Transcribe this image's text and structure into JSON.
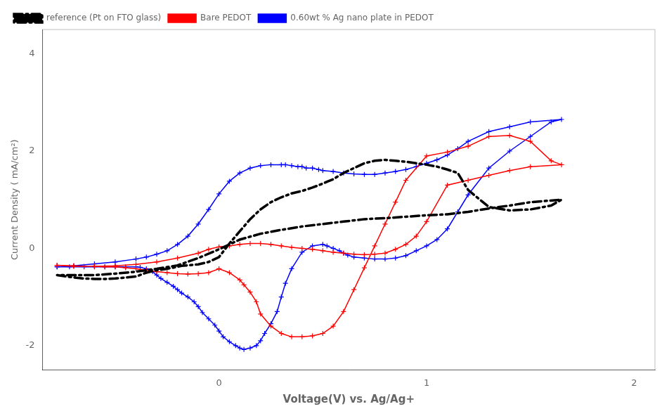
{
  "chart_data": {
    "type": "line",
    "xlabel": "Voltage(V) vs. Ag/Ag+",
    "ylabel": "Current Density ( mA/cm²)",
    "xlim": [
      -0.85,
      2.1
    ],
    "ylim": [
      -2.5,
      4.5
    ],
    "xticks": [
      0,
      1,
      2
    ],
    "yticks": [
      -2,
      0,
      2,
      4
    ],
    "grid": false,
    "legend": "upper left",
    "series": [
      {
        "name": "reference (Pt on FTO glass)",
        "color": "#000000",
        "line_style": "dashdot",
        "x": [
          -0.78,
          -0.7,
          -0.65,
          -0.6,
          -0.55,
          -0.5,
          -0.45,
          -0.4,
          -0.35,
          -0.3,
          -0.25,
          -0.2,
          -0.18,
          -0.15,
          -0.1,
          -0.05,
          0.0,
          0.05,
          0.1,
          0.15,
          0.2,
          0.25,
          0.3,
          0.35,
          0.4,
          0.45,
          0.5,
          0.52,
          0.55,
          0.58,
          0.6,
          0.65,
          0.7,
          0.75,
          0.8,
          0.85,
          0.9,
          0.95,
          1.0,
          1.05,
          1.1,
          1.15,
          1.2,
          1.3,
          1.4,
          1.5,
          1.6,
          1.65,
          1.5,
          1.4,
          1.3,
          1.2,
          1.1,
          1.0,
          0.9,
          0.8,
          0.7,
          0.6,
          0.5,
          0.4,
          0.3,
          0.2,
          0.1,
          0.0,
          -0.1,
          -0.2,
          -0.3,
          -0.4,
          -0.5,
          -0.6,
          -0.7,
          -0.78
        ],
        "values": [
          -0.55,
          -0.6,
          -0.62,
          -0.63,
          -0.63,
          -0.62,
          -0.6,
          -0.58,
          -0.5,
          -0.45,
          -0.42,
          -0.38,
          -0.36,
          -0.35,
          -0.33,
          -0.28,
          -0.18,
          0.1,
          0.35,
          0.6,
          0.8,
          0.95,
          1.05,
          1.13,
          1.18,
          1.25,
          1.33,
          1.37,
          1.42,
          1.5,
          1.55,
          1.65,
          1.75,
          1.8,
          1.82,
          1.8,
          1.78,
          1.75,
          1.72,
          1.68,
          1.62,
          1.55,
          1.2,
          0.85,
          0.78,
          0.8,
          0.88,
          1.0,
          0.95,
          0.88,
          0.82,
          0.75,
          0.7,
          0.68,
          0.65,
          0.62,
          0.6,
          0.55,
          0.5,
          0.45,
          0.38,
          0.3,
          0.18,
          -0.02,
          -0.2,
          -0.35,
          -0.42,
          -0.48,
          -0.52,
          -0.55,
          -0.55,
          -0.55
        ]
      },
      {
        "name": "Bare PEDOT",
        "color": "#ff0000",
        "line_style": "solid",
        "marker": "+",
        "x": [
          -0.78,
          -0.7,
          -0.65,
          -0.6,
          -0.55,
          -0.5,
          -0.45,
          -0.4,
          -0.35,
          -0.3,
          -0.25,
          -0.2,
          -0.15,
          -0.1,
          -0.05,
          0.0,
          0.05,
          0.1,
          0.12,
          0.15,
          0.18,
          0.2,
          0.25,
          0.3,
          0.35,
          0.4,
          0.45,
          0.5,
          0.55,
          0.6,
          0.65,
          0.7,
          0.75,
          0.8,
          0.85,
          0.9,
          1.0,
          1.1,
          1.2,
          1.3,
          1.4,
          1.5,
          1.6,
          1.65,
          1.5,
          1.4,
          1.3,
          1.2,
          1.1,
          1.0,
          0.95,
          0.9,
          0.85,
          0.8,
          0.75,
          0.7,
          0.65,
          0.6,
          0.55,
          0.5,
          0.45,
          0.4,
          0.35,
          0.3,
          0.25,
          0.2,
          0.15,
          0.1,
          0.05,
          0.0,
          -0.05,
          -0.1,
          -0.2,
          -0.3,
          -0.4,
          -0.5,
          -0.6,
          -0.7,
          -0.78
        ],
        "values": [
          -0.35,
          -0.36,
          -0.37,
          -0.37,
          -0.38,
          -0.38,
          -0.4,
          -0.42,
          -0.45,
          -0.48,
          -0.5,
          -0.52,
          -0.53,
          -0.52,
          -0.5,
          -0.42,
          -0.5,
          -0.65,
          -0.75,
          -0.9,
          -1.1,
          -1.35,
          -1.6,
          -1.75,
          -1.82,
          -1.82,
          -1.8,
          -1.75,
          -1.6,
          -1.3,
          -0.85,
          -0.4,
          0.05,
          0.5,
          0.95,
          1.4,
          1.9,
          1.98,
          2.1,
          2.3,
          2.32,
          2.2,
          1.8,
          1.72,
          1.68,
          1.6,
          1.5,
          1.4,
          1.3,
          0.55,
          0.25,
          0.08,
          -0.02,
          -0.1,
          -0.12,
          -0.13,
          -0.12,
          -0.1,
          -0.08,
          -0.05,
          -0.02,
          0.0,
          0.02,
          0.05,
          0.08,
          0.1,
          0.1,
          0.08,
          0.05,
          0.03,
          -0.02,
          -0.1,
          -0.2,
          -0.28,
          -0.33,
          -0.36,
          -0.37,
          -0.37,
          -0.35
        ]
      },
      {
        "name": "0.60wt % Ag nano plate in PEDOT",
        "color": "#0000ff",
        "line_style": "solid",
        "marker": "+",
        "x": [
          -0.78,
          -0.72,
          -0.65,
          -0.6,
          -0.55,
          -0.5,
          -0.45,
          -0.4,
          -0.38,
          -0.35,
          -0.32,
          -0.3,
          -0.28,
          -0.25,
          -0.22,
          -0.2,
          -0.18,
          -0.15,
          -0.12,
          -0.1,
          -0.08,
          -0.05,
          -0.02,
          0.0,
          0.02,
          0.05,
          0.08,
          0.1,
          0.12,
          0.15,
          0.18,
          0.2,
          0.22,
          0.25,
          0.28,
          0.3,
          0.32,
          0.35,
          0.4,
          0.45,
          0.5,
          0.52,
          0.55,
          0.58,
          0.6,
          0.62,
          0.65,
          0.7,
          0.75,
          0.8,
          0.85,
          0.9,
          0.95,
          1.0,
          1.05,
          1.1,
          1.15,
          1.2,
          1.3,
          1.4,
          1.5,
          1.6,
          1.65,
          1.5,
          1.4,
          1.3,
          1.2,
          1.15,
          1.1,
          1.05,
          1.0,
          0.95,
          0.9,
          0.85,
          0.8,
          0.75,
          0.7,
          0.65,
          0.6,
          0.55,
          0.5,
          0.48,
          0.45,
          0.42,
          0.4,
          0.38,
          0.35,
          0.32,
          0.3,
          0.25,
          0.2,
          0.15,
          0.1,
          0.05,
          0.0,
          -0.05,
          -0.1,
          -0.15,
          -0.2,
          -0.25,
          -0.3,
          -0.35,
          -0.4,
          -0.5,
          -0.6,
          -0.7,
          -0.78
        ],
        "values": [
          -0.38,
          -0.38,
          -0.38,
          -0.38,
          -0.38,
          -0.38,
          -0.38,
          -0.38,
          -0.39,
          -0.42,
          -0.48,
          -0.55,
          -0.62,
          -0.7,
          -0.78,
          -0.85,
          -0.92,
          -1.0,
          -1.1,
          -1.2,
          -1.32,
          -1.45,
          -1.58,
          -1.7,
          -1.82,
          -1.92,
          -2.0,
          -2.05,
          -2.08,
          -2.05,
          -2.0,
          -1.9,
          -1.75,
          -1.55,
          -1.3,
          -1.0,
          -0.72,
          -0.42,
          -0.08,
          0.05,
          0.08,
          0.05,
          0.0,
          -0.05,
          -0.1,
          -0.14,
          -0.18,
          -0.2,
          -0.22,
          -0.22,
          -0.2,
          -0.15,
          -0.05,
          0.05,
          0.18,
          0.4,
          0.75,
          1.1,
          1.65,
          2.0,
          2.3,
          2.6,
          2.65,
          2.6,
          2.5,
          2.4,
          2.2,
          2.05,
          1.92,
          1.82,
          1.75,
          1.68,
          1.62,
          1.58,
          1.55,
          1.52,
          1.52,
          1.53,
          1.55,
          1.58,
          1.6,
          1.62,
          1.65,
          1.65,
          1.68,
          1.68,
          1.7,
          1.72,
          1.72,
          1.72,
          1.7,
          1.65,
          1.55,
          1.38,
          1.12,
          0.8,
          0.5,
          0.25,
          0.08,
          -0.05,
          -0.12,
          -0.18,
          -0.22,
          -0.28,
          -0.32,
          -0.36,
          -0.38
        ]
      }
    ]
  }
}
